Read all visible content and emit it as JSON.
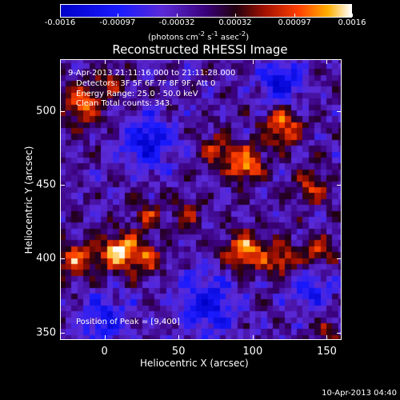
{
  "chart_data": {
    "type": "heatmap",
    "title": "Reconstructed RHESSI Image",
    "xlabel": "Heliocentric X (arcsec)",
    "ylabel": "Heliocentric Y (arcsec)",
    "xlim": [
      -30,
      160
    ],
    "ylim": [
      345,
      535
    ],
    "x_ticks": [
      "0",
      "50",
      "100",
      "150"
    ],
    "x_tick_values": [
      0,
      50,
      100,
      150
    ],
    "y_ticks": [
      "350",
      "400",
      "450",
      "500"
    ],
    "y_tick_values": [
      350,
      400,
      450,
      500
    ],
    "colorbar": {
      "ticks": [
        "-0.0016",
        "-0.00097",
        "-0.00032",
        "0.00032",
        "0.00097",
        "0.0016"
      ],
      "tick_values": [
        -0.0016,
        -0.00097,
        -0.00032,
        0.00032,
        0.00097,
        0.0016
      ],
      "unit_parts": [
        "(photons cm",
        "-2",
        " s",
        "-1",
        " asec",
        "-2",
        ")"
      ],
      "range": [
        -0.0016,
        0.0016
      ]
    },
    "annotations": {
      "time_range": "9-Apr-2013 21:11:16.000 to 21:11:28.000",
      "detectors": "Detectors: 3F 5F 6F 7F 8F 9F, Att 0",
      "energy": "Energy Range: 25.0 - 50.0 keV",
      "clean": "Clean     Total counts: 343.",
      "peak": "Position of Peak = [9,400]"
    },
    "blobs": [
      {
        "x": 10,
        "y": 405,
        "amp": 0.0017,
        "sigma": 9
      },
      {
        "x": -20,
        "y": 400,
        "amp": 0.0012,
        "sigma": 9
      },
      {
        "x": 30,
        "y": 400,
        "amp": 0.0009,
        "sigma": 8
      },
      {
        "x": 95,
        "y": 405,
        "amp": 0.0015,
        "sigma": 9
      },
      {
        "x": 120,
        "y": 400,
        "amp": 0.0011,
        "sigma": 8
      },
      {
        "x": 145,
        "y": 405,
        "amp": 0.001,
        "sigma": 7
      },
      {
        "x": -15,
        "y": 505,
        "amp": 0.0013,
        "sigma": 9
      },
      {
        "x": 5,
        "y": 520,
        "amp": 0.0009,
        "sigma": 7
      },
      {
        "x": 95,
        "y": 465,
        "amp": 0.0014,
        "sigma": 9
      },
      {
        "x": 120,
        "y": 490,
        "amp": 0.0013,
        "sigma": 9
      },
      {
        "x": 75,
        "y": 475,
        "amp": 0.0009,
        "sigma": 8
      },
      {
        "x": 140,
        "y": 450,
        "amp": 0.001,
        "sigma": 8
      },
      {
        "x": 55,
        "y": 430,
        "amp": 0.0007,
        "sigma": 7
      },
      {
        "x": 30,
        "y": 430,
        "amp": 0.0008,
        "sigma": 7
      },
      {
        "x": 150,
        "y": 350,
        "amp": 0.0008,
        "sigma": 6
      },
      {
        "x": 30,
        "y": 480,
        "amp": -0.0012,
        "sigma": 12
      },
      {
        "x": 120,
        "y": 520,
        "amp": -0.0012,
        "sigma": 10
      },
      {
        "x": 70,
        "y": 370,
        "amp": -0.0011,
        "sigma": 14
      },
      {
        "x": 0,
        "y": 360,
        "amp": -0.0009,
        "sigma": 12
      },
      {
        "x": 140,
        "y": 380,
        "amp": -0.0008,
        "sigma": 10
      }
    ],
    "colormap": [
      [
        0.0,
        "#0000c8"
      ],
      [
        0.2,
        "#1a1aff"
      ],
      [
        0.35,
        "#5a2ad8"
      ],
      [
        0.5,
        "#3a007a"
      ],
      [
        0.6,
        "#200010"
      ],
      [
        0.7,
        "#a01000"
      ],
      [
        0.82,
        "#ff4000"
      ],
      [
        0.92,
        "#ffb000"
      ],
      [
        1.0,
        "#ffffff"
      ]
    ]
  },
  "timestamp": "10-Apr-2013 04:40"
}
